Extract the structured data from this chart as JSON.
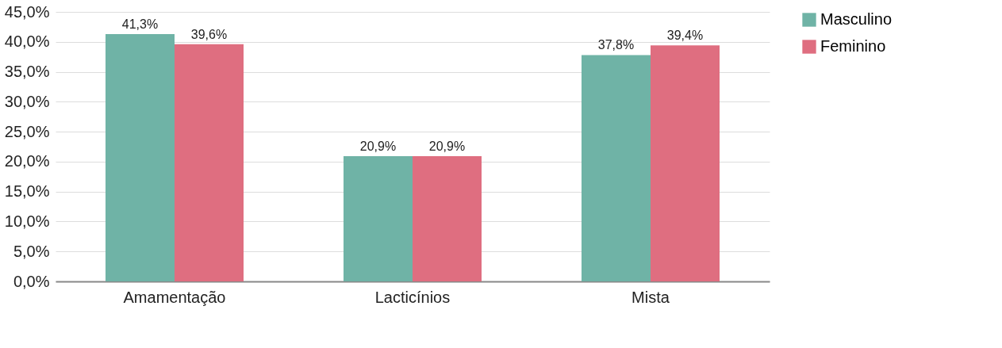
{
  "chart_data": {
    "type": "bar",
    "categories": [
      "Amamentação",
      "Lacticínios",
      "Mista"
    ],
    "series": [
      {
        "name": "Masculino",
        "color": "#6fb3a6",
        "values": [
          41.3,
          20.9,
          37.8
        ],
        "value_labels": [
          "41,3%",
          "20,9%",
          "37,8%"
        ]
      },
      {
        "name": "Feminino",
        "color": "#df6e80",
        "values": [
          39.6,
          20.9,
          39.4
        ],
        "value_labels": [
          "39,6%",
          "20,9%",
          "39,4%"
        ]
      }
    ],
    "ylim": [
      0,
      45
    ],
    "yticks": [
      {
        "value": 0,
        "label": "0,0%"
      },
      {
        "value": 5,
        "label": "5,0%"
      },
      {
        "value": 10,
        "label": "10,0%"
      },
      {
        "value": 15,
        "label": "15,0%"
      },
      {
        "value": 20,
        "label": "20,0%"
      },
      {
        "value": 25,
        "label": "25,0%"
      },
      {
        "value": 30,
        "label": "30,0%"
      },
      {
        "value": 35,
        "label": "35,0%"
      },
      {
        "value": 40,
        "label": "40,0%"
      },
      {
        "value": 45,
        "label": "45,0%"
      }
    ],
    "grid": "y",
    "legend": "top right"
  }
}
